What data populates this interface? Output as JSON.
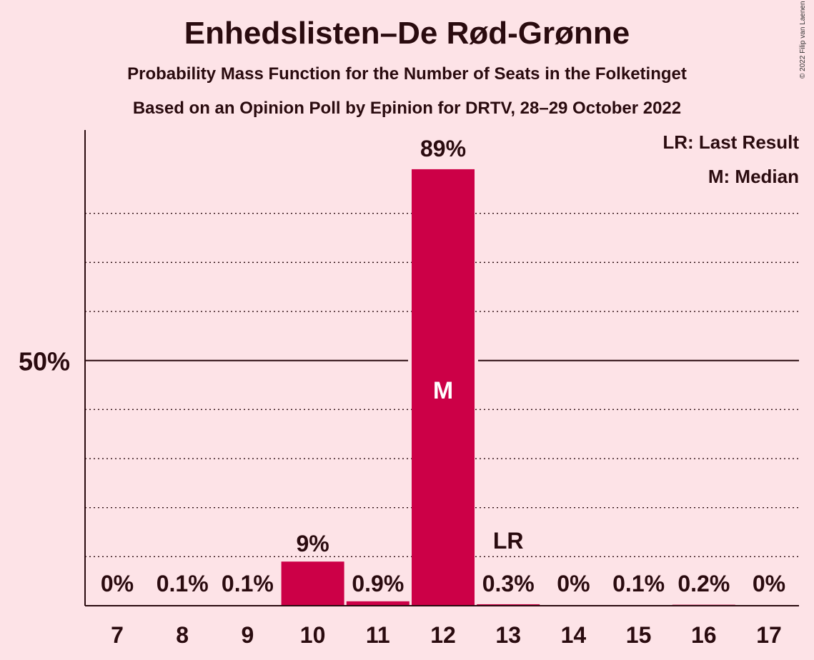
{
  "chart_data": {
    "type": "bar",
    "title": "Enhedslisten–De Rød-Grønne",
    "subtitle": "Probability Mass Function for the Number of Seats in the Folketinget",
    "subtitle2": "Based on an Opinion Poll by Epinion for DRTV, 28–29 October 2022",
    "copyright": "© 2022 Filip van Laenen",
    "legend": [
      "LR: Last Result",
      "M: Median"
    ],
    "legend_placement": "top-right",
    "categories": [
      "7",
      "8",
      "9",
      "10",
      "11",
      "12",
      "13",
      "14",
      "15",
      "16",
      "17"
    ],
    "values": [
      0,
      0.1,
      0.1,
      9,
      0.9,
      89,
      0.3,
      0,
      0.1,
      0.2,
      0
    ],
    "value_labels": [
      "0%",
      "0.1%",
      "0.1%",
      "9%",
      "0.9%",
      "89%",
      "0.3%",
      "0%",
      "0.1%",
      "0.2%",
      "0%"
    ],
    "ylim": [
      0,
      97
    ],
    "y_tick_label": "50%",
    "y_tick_value": 50,
    "gridlines": [
      10,
      20,
      30,
      40,
      60,
      70,
      80
    ],
    "median_category": "12",
    "median_marker": "M",
    "last_result_category": "13",
    "last_result_marker": "LR",
    "bar_color": "#cc0047",
    "background_color": "#fde3e7"
  }
}
